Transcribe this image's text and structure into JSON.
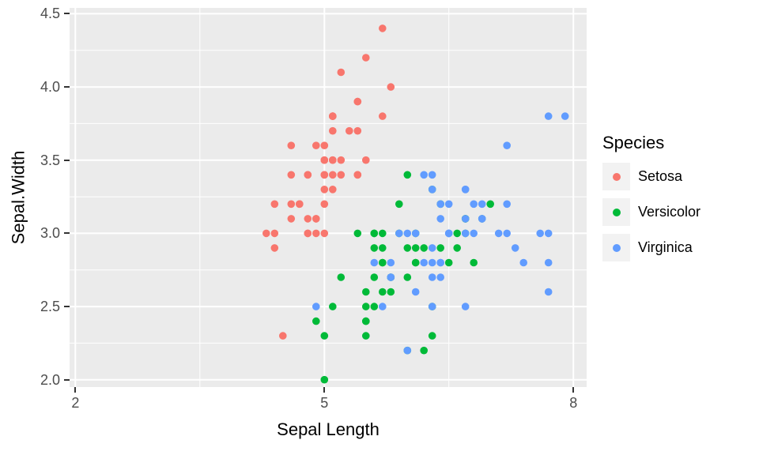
{
  "figure": {
    "background": "#FFFFFF"
  },
  "chart_data": {
    "type": "scatter",
    "title": "",
    "xlabel": "Sepal Length",
    "ylabel": "Sepal.Width",
    "legend_title": "Species",
    "legend_position": "right",
    "grid": true,
    "x_domain": [
      1.93,
      8.16
    ],
    "y_domain": [
      1.95,
      4.54
    ],
    "x_ticks": [
      2,
      5,
      8
    ],
    "x_tick_labels": [
      "2",
      "5",
      "8"
    ],
    "y_ticks": [
      2.0,
      2.5,
      3.0,
      3.5,
      4.0,
      4.5
    ],
    "y_tick_labels": [
      "2.0",
      "2.5",
      "3.0",
      "3.5",
      "4.0",
      "4.5"
    ],
    "x_minor_ticks": [
      3.5,
      6.5
    ],
    "y_minor_ticks": [
      2.25,
      2.75,
      3.25,
      3.75,
      4.25
    ],
    "colors": {
      "panel_bg": "#EBEBEB",
      "grid": "#FFFFFF",
      "legend_key_bg": "#F2F2F2",
      "tick_mark": "#333333",
      "tick_label": "#4D4D4D",
      "text": "#000000"
    },
    "series": [
      {
        "name": "Setosa",
        "color": "#F8766D",
        "points": [
          [
            5.1,
            3.5
          ],
          [
            4.9,
            3.0
          ],
          [
            4.7,
            3.2
          ],
          [
            4.6,
            3.1
          ],
          [
            5.0,
            3.6
          ],
          [
            5.4,
            3.9
          ],
          [
            4.6,
            3.4
          ],
          [
            5.0,
            3.4
          ],
          [
            4.4,
            2.9
          ],
          [
            4.9,
            3.1
          ],
          [
            5.4,
            3.7
          ],
          [
            4.8,
            3.4
          ],
          [
            4.8,
            3.0
          ],
          [
            4.3,
            3.0
          ],
          [
            5.8,
            4.0
          ],
          [
            5.7,
            4.4
          ],
          [
            5.4,
            3.9
          ],
          [
            5.1,
            3.5
          ],
          [
            5.7,
            3.8
          ],
          [
            5.1,
            3.8
          ],
          [
            5.4,
            3.4
          ],
          [
            5.1,
            3.7
          ],
          [
            4.6,
            3.6
          ],
          [
            5.1,
            3.3
          ],
          [
            4.8,
            3.4
          ],
          [
            5.0,
            3.0
          ],
          [
            5.0,
            3.4
          ],
          [
            5.2,
            3.5
          ],
          [
            5.2,
            3.4
          ],
          [
            4.7,
            3.2
          ],
          [
            4.8,
            3.1
          ],
          [
            5.4,
            3.4
          ],
          [
            5.2,
            4.1
          ],
          [
            5.5,
            4.2
          ],
          [
            4.9,
            3.1
          ],
          [
            5.0,
            3.2
          ],
          [
            5.5,
            3.5
          ],
          [
            4.9,
            3.6
          ],
          [
            4.4,
            3.0
          ],
          [
            5.1,
            3.4
          ],
          [
            5.0,
            3.5
          ],
          [
            4.5,
            2.3
          ],
          [
            4.4,
            3.2
          ],
          [
            5.0,
            3.5
          ],
          [
            5.1,
            3.8
          ],
          [
            4.8,
            3.0
          ],
          [
            5.1,
            3.8
          ],
          [
            4.6,
            3.2
          ],
          [
            5.3,
            3.7
          ],
          [
            5.0,
            3.3
          ]
        ]
      },
      {
        "name": "Versicolor",
        "color": "#00BA38",
        "points": [
          [
            7.0,
            3.2
          ],
          [
            6.4,
            3.2
          ],
          [
            6.9,
            3.1
          ],
          [
            5.5,
            2.3
          ],
          [
            6.5,
            2.8
          ],
          [
            5.7,
            2.8
          ],
          [
            6.3,
            3.3
          ],
          [
            4.9,
            2.4
          ],
          [
            6.6,
            2.9
          ],
          [
            5.2,
            2.7
          ],
          [
            5.0,
            2.0
          ],
          [
            5.9,
            3.0
          ],
          [
            6.0,
            2.2
          ],
          [
            6.1,
            2.9
          ],
          [
            5.6,
            2.9
          ],
          [
            6.7,
            3.1
          ],
          [
            5.6,
            3.0
          ],
          [
            5.8,
            2.7
          ],
          [
            6.2,
            2.2
          ],
          [
            5.6,
            2.5
          ],
          [
            5.9,
            3.2
          ],
          [
            6.1,
            2.8
          ],
          [
            6.3,
            2.5
          ],
          [
            6.1,
            2.8
          ],
          [
            6.4,
            2.9
          ],
          [
            6.6,
            3.0
          ],
          [
            6.8,
            2.8
          ],
          [
            6.7,
            3.0
          ],
          [
            6.0,
            2.9
          ],
          [
            5.7,
            2.6
          ],
          [
            5.5,
            2.4
          ],
          [
            5.5,
            2.4
          ],
          [
            5.8,
            2.7
          ],
          [
            6.0,
            2.7
          ],
          [
            5.4,
            3.0
          ],
          [
            6.0,
            3.4
          ],
          [
            6.7,
            3.1
          ],
          [
            6.3,
            2.3
          ],
          [
            5.6,
            3.0
          ],
          [
            5.5,
            2.5
          ],
          [
            5.5,
            2.6
          ],
          [
            6.1,
            3.0
          ],
          [
            5.8,
            2.6
          ],
          [
            5.0,
            2.3
          ],
          [
            5.6,
            2.7
          ],
          [
            5.7,
            3.0
          ],
          [
            5.7,
            2.9
          ],
          [
            6.2,
            2.9
          ],
          [
            5.1,
            2.5
          ],
          [
            5.7,
            2.8
          ]
        ]
      },
      {
        "name": "Virginica",
        "color": "#619CFF",
        "points": [
          [
            6.3,
            3.3
          ],
          [
            5.8,
            2.7
          ],
          [
            7.1,
            3.0
          ],
          [
            6.3,
            2.9
          ],
          [
            6.5,
            3.0
          ],
          [
            7.6,
            3.0
          ],
          [
            4.9,
            2.5
          ],
          [
            7.3,
            2.9
          ],
          [
            6.7,
            2.5
          ],
          [
            7.2,
            3.6
          ],
          [
            6.5,
            3.2
          ],
          [
            6.4,
            2.7
          ],
          [
            6.8,
            3.0
          ],
          [
            5.7,
            2.5
          ],
          [
            5.8,
            2.8
          ],
          [
            6.4,
            3.2
          ],
          [
            6.5,
            3.0
          ],
          [
            7.7,
            3.8
          ],
          [
            7.7,
            2.6
          ],
          [
            6.0,
            2.2
          ],
          [
            6.9,
            3.2
          ],
          [
            5.6,
            2.8
          ],
          [
            7.7,
            2.8
          ],
          [
            6.3,
            2.7
          ],
          [
            6.7,
            3.3
          ],
          [
            7.2,
            3.2
          ],
          [
            6.2,
            2.8
          ],
          [
            6.1,
            3.0
          ],
          [
            6.4,
            2.8
          ],
          [
            7.2,
            3.0
          ],
          [
            7.4,
            2.8
          ],
          [
            7.9,
            3.8
          ],
          [
            6.4,
            2.8
          ],
          [
            6.3,
            2.8
          ],
          [
            6.1,
            2.6
          ],
          [
            7.7,
            3.0
          ],
          [
            6.3,
            3.4
          ],
          [
            6.4,
            3.1
          ],
          [
            6.0,
            3.0
          ],
          [
            6.9,
            3.1
          ],
          [
            6.7,
            3.1
          ],
          [
            6.9,
            3.1
          ],
          [
            5.8,
            2.7
          ],
          [
            6.8,
            3.2
          ],
          [
            6.7,
            3.3
          ],
          [
            6.7,
            3.0
          ],
          [
            6.3,
            2.5
          ],
          [
            6.5,
            3.0
          ],
          [
            6.2,
            3.4
          ],
          [
            5.9,
            3.0
          ]
        ]
      }
    ]
  }
}
